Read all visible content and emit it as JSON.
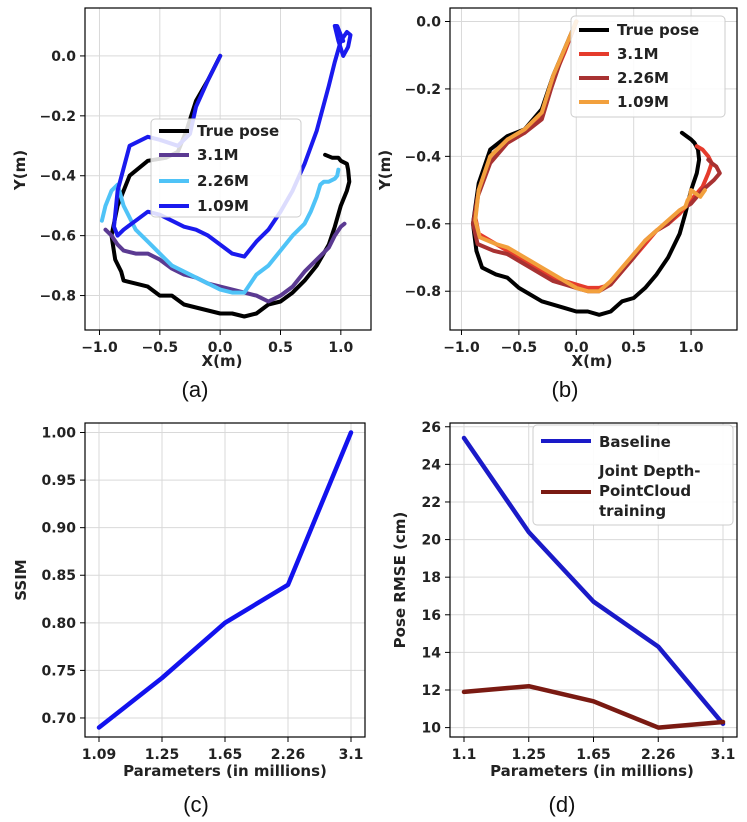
{
  "chart_data": [
    {
      "id": "a",
      "type": "line",
      "caption": "(a)",
      "xlabel": "X(m)",
      "ylabel": "Y(m)",
      "xlim": [
        -1.12,
        1.25
      ],
      "ylim": [
        -0.915,
        0.16
      ],
      "xticks": [
        -1.0,
        -0.5,
        0.0,
        0.5,
        1.0
      ],
      "xtick_labels": [
        "−1.0",
        "−0.5",
        "0.0",
        "0.5",
        "1.0"
      ],
      "yticks": [
        0.0,
        -0.2,
        -0.4,
        -0.6,
        -0.8
      ],
      "ytick_labels": [
        "0.0",
        "−0.2",
        "−0.4",
        "−0.6",
        "−0.8"
      ],
      "legend": "center",
      "series": [
        {
          "name": "True pose",
          "color": "#000000",
          "x": [
            0.0,
            -0.1,
            -0.2,
            -0.28,
            -0.35,
            -0.45,
            -0.6,
            -0.75,
            -0.85,
            -0.9,
            -0.87,
            -0.82,
            -0.8,
            -0.7,
            -0.6,
            -0.5,
            -0.4,
            -0.3,
            -0.2,
            -0.1,
            0.0,
            0.1,
            0.2,
            0.3,
            0.4,
            0.5,
            0.6,
            0.7,
            0.8,
            0.9,
            0.95,
            1.0,
            1.05,
            1.07,
            1.06,
            1.05,
            1.0,
            0.98,
            0.93,
            0.87
          ],
          "y": [
            0.0,
            -0.08,
            -0.15,
            -0.25,
            -0.32,
            -0.34,
            -0.35,
            -0.4,
            -0.5,
            -0.6,
            -0.68,
            -0.72,
            -0.75,
            -0.76,
            -0.77,
            -0.8,
            -0.8,
            -0.83,
            -0.84,
            -0.85,
            -0.86,
            -0.86,
            -0.87,
            -0.86,
            -0.83,
            -0.82,
            -0.79,
            -0.75,
            -0.7,
            -0.63,
            -0.57,
            -0.5,
            -0.45,
            -0.42,
            -0.38,
            -0.36,
            -0.35,
            -0.34,
            -0.34,
            -0.33
          ]
        },
        {
          "name": "3.1M",
          "color": "#5b3a92",
          "x": [
            -0.95,
            -0.9,
            -0.85,
            -0.8,
            -0.7,
            -0.6,
            -0.5,
            -0.4,
            -0.3,
            -0.2,
            -0.1,
            0.0,
            0.1,
            0.2,
            0.3,
            0.4,
            0.5,
            0.6,
            0.7,
            0.8,
            0.9,
            0.95,
            1.0,
            1.03
          ],
          "y": [
            -0.58,
            -0.6,
            -0.63,
            -0.65,
            -0.66,
            -0.66,
            -0.68,
            -0.71,
            -0.73,
            -0.74,
            -0.76,
            -0.77,
            -0.78,
            -0.79,
            -0.8,
            -0.82,
            -0.8,
            -0.77,
            -0.72,
            -0.68,
            -0.64,
            -0.6,
            -0.57,
            -0.56
          ]
        },
        {
          "name": "2.26M",
          "color": "#4fc3f7",
          "x": [
            -0.98,
            -0.95,
            -0.9,
            -0.85,
            -0.8,
            -0.7,
            -0.6,
            -0.5,
            -0.4,
            -0.3,
            -0.2,
            -0.1,
            0.0,
            0.1,
            0.2,
            0.3,
            0.4,
            0.5,
            0.6,
            0.7,
            0.75,
            0.8,
            0.83,
            0.86,
            0.9,
            0.95,
            0.97,
            0.98
          ],
          "y": [
            -0.55,
            -0.5,
            -0.45,
            -0.43,
            -0.5,
            -0.58,
            -0.62,
            -0.66,
            -0.7,
            -0.72,
            -0.74,
            -0.76,
            -0.78,
            -0.79,
            -0.79,
            -0.73,
            -0.7,
            -0.65,
            -0.6,
            -0.56,
            -0.52,
            -0.47,
            -0.43,
            -0.42,
            -0.42,
            -0.41,
            -0.4,
            -0.38
          ]
        },
        {
          "name": "1.09M",
          "color": "#1a1aee",
          "x": [
            0.0,
            -0.1,
            -0.2,
            -0.25,
            -0.35,
            -0.5,
            -0.6,
            -0.75,
            -0.85,
            -0.88,
            -0.85,
            -0.8,
            -0.7,
            -0.6,
            -0.5,
            -0.4,
            -0.3,
            -0.2,
            -0.1,
            0.0,
            0.1,
            0.2,
            0.3,
            0.4,
            0.5,
            0.6,
            0.7,
            0.8,
            0.9,
            0.95,
            1.0,
            1.05,
            1.08,
            1.06,
            1.02,
            0.98,
            0.95,
            0.97,
            1.0,
            1.02
          ],
          "y": [
            0.0,
            -0.08,
            -0.17,
            -0.26,
            -0.3,
            -0.28,
            -0.27,
            -0.3,
            -0.45,
            -0.57,
            -0.6,
            -0.58,
            -0.55,
            -0.52,
            -0.53,
            -0.55,
            -0.57,
            -0.58,
            -0.6,
            -0.63,
            -0.66,
            -0.67,
            -0.62,
            -0.58,
            -0.52,
            -0.45,
            -0.36,
            -0.25,
            -0.1,
            -0.02,
            0.05,
            0.08,
            0.07,
            0.03,
            0.0,
            0.05,
            0.1,
            0.1,
            0.07,
            0.05
          ]
        }
      ]
    },
    {
      "id": "b",
      "type": "line",
      "caption": "(b)",
      "xlabel": "X(m)",
      "ylabel": "Y(m)",
      "xlim": [
        -1.1,
        1.4
      ],
      "ylim": [
        -0.915,
        0.04
      ],
      "xticks": [
        -1.0,
        -0.5,
        0.0,
        0.5,
        1.0
      ],
      "xtick_labels": [
        "−1.0",
        "−0.5",
        "0.0",
        "0.5",
        "1.0"
      ],
      "yticks": [
        0.0,
        -0.2,
        -0.4,
        -0.6,
        -0.8
      ],
      "ytick_labels": [
        "0.0",
        "−0.2",
        "−0.4",
        "−0.6",
        "−0.8"
      ],
      "legend": "top-right",
      "series": [
        {
          "name": "True pose",
          "color": "#000000",
          "x": [
            0.0,
            -0.1,
            -0.2,
            -0.3,
            -0.45,
            -0.6,
            -0.75,
            -0.85,
            -0.9,
            -0.87,
            -0.82,
            -0.7,
            -0.6,
            -0.5,
            -0.4,
            -0.3,
            -0.2,
            -0.1,
            0.0,
            0.1,
            0.2,
            0.3,
            0.4,
            0.5,
            0.6,
            0.7,
            0.8,
            0.9,
            0.95,
            1.0,
            1.05,
            1.07,
            1.06,
            1.03,
            1.0,
            0.96,
            0.92
          ],
          "y": [
            0.0,
            -0.08,
            -0.16,
            -0.26,
            -0.32,
            -0.34,
            -0.38,
            -0.48,
            -0.6,
            -0.68,
            -0.73,
            -0.75,
            -0.76,
            -0.79,
            -0.81,
            -0.83,
            -0.84,
            -0.85,
            -0.86,
            -0.86,
            -0.87,
            -0.86,
            -0.83,
            -0.82,
            -0.79,
            -0.75,
            -0.7,
            -0.63,
            -0.57,
            -0.5,
            -0.45,
            -0.41,
            -0.38,
            -0.36,
            -0.35,
            -0.34,
            -0.33
          ]
        },
        {
          "name": "3.1M",
          "color": "#e53b2c",
          "x": [
            0.0,
            -0.1,
            -0.2,
            -0.3,
            -0.45,
            -0.6,
            -0.75,
            -0.85,
            -0.88,
            -0.85,
            -0.7,
            -0.6,
            -0.5,
            -0.4,
            -0.3,
            -0.2,
            -0.1,
            0.0,
            0.1,
            0.2,
            0.3,
            0.4,
            0.5,
            0.6,
            0.7,
            0.8,
            0.9,
            1.0,
            1.1,
            1.15,
            1.18,
            1.15,
            1.1,
            1.05
          ],
          "y": [
            0.0,
            -0.09,
            -0.17,
            -0.28,
            -0.33,
            -0.35,
            -0.4,
            -0.5,
            -0.58,
            -0.63,
            -0.66,
            -0.68,
            -0.7,
            -0.72,
            -0.74,
            -0.76,
            -0.77,
            -0.78,
            -0.79,
            -0.79,
            -0.78,
            -0.74,
            -0.7,
            -0.66,
            -0.62,
            -0.6,
            -0.57,
            -0.53,
            -0.49,
            -0.45,
            -0.42,
            -0.4,
            -0.38,
            -0.37
          ]
        },
        {
          "name": "2.26M",
          "color": "#a83232",
          "x": [
            0.0,
            -0.12,
            -0.22,
            -0.3,
            -0.45,
            -0.6,
            -0.75,
            -0.86,
            -0.9,
            -0.86,
            -0.72,
            -0.6,
            -0.5,
            -0.4,
            -0.3,
            -0.2,
            -0.1,
            0.0,
            0.1,
            0.2,
            0.3,
            0.4,
            0.5,
            0.6,
            0.7,
            0.8,
            0.9,
            1.0,
            1.1,
            1.2,
            1.25,
            1.22,
            1.18,
            1.15
          ],
          "y": [
            0.0,
            -0.1,
            -0.2,
            -0.29,
            -0.33,
            -0.36,
            -0.42,
            -0.52,
            -0.6,
            -0.66,
            -0.68,
            -0.69,
            -0.71,
            -0.73,
            -0.75,
            -0.77,
            -0.78,
            -0.79,
            -0.8,
            -0.8,
            -0.78,
            -0.74,
            -0.7,
            -0.65,
            -0.62,
            -0.6,
            -0.56,
            -0.54,
            -0.5,
            -0.47,
            -0.45,
            -0.43,
            -0.42,
            -0.41
          ]
        },
        {
          "name": "1.09M",
          "color": "#f2a03d",
          "x": [
            0.0,
            -0.1,
            -0.2,
            -0.3,
            -0.45,
            -0.6,
            -0.75,
            -0.85,
            -0.88,
            -0.84,
            -0.7,
            -0.6,
            -0.5,
            -0.4,
            -0.3,
            -0.2,
            -0.1,
            0.0,
            0.1,
            0.2,
            0.3,
            0.4,
            0.5,
            0.6,
            0.7,
            0.8,
            0.9,
            0.95,
            0.97,
            0.99,
            1.0,
            1.08,
            1.12
          ],
          "y": [
            0.0,
            -0.08,
            -0.16,
            -0.27,
            -0.32,
            -0.35,
            -0.4,
            -0.5,
            -0.59,
            -0.64,
            -0.66,
            -0.67,
            -0.69,
            -0.71,
            -0.73,
            -0.75,
            -0.77,
            -0.79,
            -0.8,
            -0.8,
            -0.77,
            -0.73,
            -0.69,
            -0.65,
            -0.62,
            -0.59,
            -0.56,
            -0.55,
            -0.53,
            -0.52,
            -0.5,
            -0.52,
            -0.5
          ]
        }
      ]
    },
    {
      "id": "c",
      "type": "line",
      "caption": "(c)",
      "xlabel": "Parameters (in millions)",
      "ylabel": "SSIM",
      "categories": [
        "1.09",
        "1.25",
        "1.65",
        "2.26",
        "3.1"
      ],
      "ylim": [
        0.68,
        1.01
      ],
      "yticks": [
        0.7,
        0.75,
        0.8,
        0.85,
        0.9,
        0.95,
        1.0
      ],
      "ytick_labels": [
        "0.70",
        "0.75",
        "0.80",
        "0.85",
        "0.90",
        "0.95",
        "1.00"
      ],
      "series": [
        {
          "name": "SSIM",
          "color": "#1212ee",
          "values": [
            0.69,
            0.742,
            0.8,
            0.84,
            1.0
          ]
        }
      ]
    },
    {
      "id": "d",
      "type": "line",
      "caption": "(d)",
      "xlabel": "Parameters (in millions)",
      "ylabel": "Pose RMSE (cm)",
      "categories": [
        "1.1",
        "1.25",
        "1.65",
        "2.26",
        "3.1"
      ],
      "ylim": [
        9.5,
        26.2
      ],
      "yticks": [
        10,
        12,
        14,
        16,
        18,
        20,
        22,
        24,
        26
      ],
      "ytick_labels": [
        "10",
        "12",
        "14",
        "16",
        "18",
        "20",
        "22",
        "24",
        "26"
      ],
      "legend": "top-right",
      "series": [
        {
          "name": "Baseline",
          "color": "#1a1ac8",
          "values": [
            25.4,
            20.4,
            16.7,
            14.3,
            10.2
          ]
        },
        {
          "name": "Joint Depth-PointCloud training",
          "color": "#7a1a12",
          "values": [
            11.9,
            12.2,
            11.4,
            10.0,
            10.3
          ]
        }
      ]
    }
  ]
}
